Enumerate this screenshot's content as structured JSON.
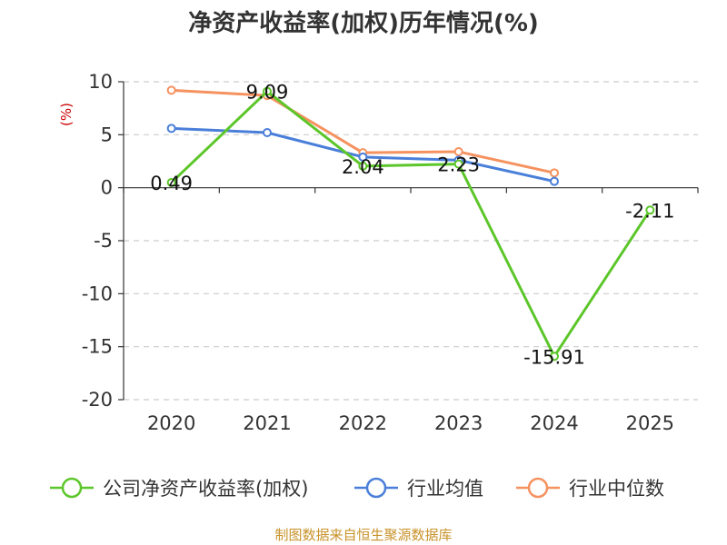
{
  "chart_data": {
    "type": "line",
    "title": "净资产收益率(加权)历年情况(%)",
    "ylabel": "(%)",
    "xlabel": "",
    "categories": [
      "2020",
      "2021",
      "2022",
      "2023",
      "2024",
      "2025"
    ],
    "ylim": [
      -20,
      10
    ],
    "yticks": [
      10,
      5,
      0,
      -5,
      -10,
      -15,
      -20
    ],
    "grid": true,
    "legend_position": "bottom",
    "series": [
      {
        "name": "公司净资产收益率(加权)",
        "color": "#5cc62a",
        "values": [
          0.49,
          9.09,
          2.04,
          2.23,
          -15.91,
          -2.11
        ],
        "labels": [
          "0.49",
          "9.09",
          "2.04",
          "2.23",
          "-15.91",
          "-2.11"
        ],
        "show_labels": true
      },
      {
        "name": "行业均值",
        "color": "#4a7fd9",
        "values": [
          5.6,
          5.2,
          2.9,
          2.6,
          0.6,
          null
        ],
        "show_labels": false
      },
      {
        "name": "行业中位数",
        "color": "#f5925f",
        "values": [
          9.2,
          8.7,
          3.3,
          3.4,
          1.4,
          null
        ],
        "show_labels": false
      }
    ]
  },
  "source_text": "制图数据来自恒生聚源数据库"
}
